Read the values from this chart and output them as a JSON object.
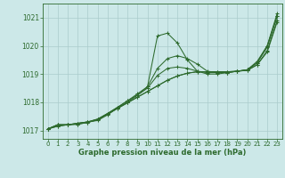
{
  "xlabel": "Graphe pression niveau de la mer (hPa)",
  "ylim": [
    1016.7,
    1021.5
  ],
  "yticks": [
    1017,
    1018,
    1019,
    1020,
    1021
  ],
  "ytick_labels": [
    "1017",
    "1018",
    "1019",
    "1020",
    "1021"
  ],
  "xlim": [
    -0.5,
    23.5
  ],
  "xticks": [
    0,
    1,
    2,
    3,
    4,
    5,
    6,
    7,
    8,
    9,
    10,
    11,
    12,
    13,
    14,
    15,
    16,
    17,
    18,
    19,
    20,
    21,
    22,
    23
  ],
  "line_color": "#2d6a2d",
  "bg_color": "#cce8e8",
  "grid_color": "#aacccc",
  "series": [
    [
      1017.05,
      1017.2,
      1017.2,
      1017.25,
      1017.3,
      1017.35,
      1017.55,
      1017.8,
      1018.0,
      1018.25,
      1018.55,
      1020.35,
      1020.45,
      1020.1,
      1019.5,
      1019.1,
      1019.0,
      1019.0,
      1019.05,
      1019.1,
      1019.15,
      1019.4,
      1020.0,
      1021.15
    ],
    [
      1017.05,
      1017.2,
      1017.2,
      1017.25,
      1017.3,
      1017.4,
      1017.6,
      1017.82,
      1018.05,
      1018.3,
      1018.55,
      1019.2,
      1019.55,
      1019.65,
      1019.55,
      1019.35,
      1019.1,
      1019.05,
      1019.05,
      1019.1,
      1019.15,
      1019.45,
      1020.0,
      1021.05
    ],
    [
      1017.05,
      1017.2,
      1017.2,
      1017.25,
      1017.3,
      1017.4,
      1017.6,
      1017.82,
      1018.05,
      1018.25,
      1018.5,
      1018.95,
      1019.2,
      1019.25,
      1019.2,
      1019.1,
      1019.05,
      1019.05,
      1019.05,
      1019.1,
      1019.15,
      1019.4,
      1019.95,
      1021.05
    ],
    [
      1017.05,
      1017.15,
      1017.2,
      1017.22,
      1017.28,
      1017.38,
      1017.58,
      1017.78,
      1017.98,
      1018.18,
      1018.38,
      1018.58,
      1018.78,
      1018.93,
      1019.03,
      1019.08,
      1019.08,
      1019.08,
      1019.08,
      1019.1,
      1019.13,
      1019.33,
      1019.83,
      1020.9
    ],
    [
      1017.05,
      1017.15,
      1017.2,
      1017.22,
      1017.28,
      1017.38,
      1017.58,
      1017.78,
      1017.98,
      1018.18,
      1018.38,
      1018.58,
      1018.78,
      1018.93,
      1019.03,
      1019.08,
      1019.08,
      1019.08,
      1019.08,
      1019.1,
      1019.13,
      1019.33,
      1019.78,
      1020.85
    ]
  ]
}
